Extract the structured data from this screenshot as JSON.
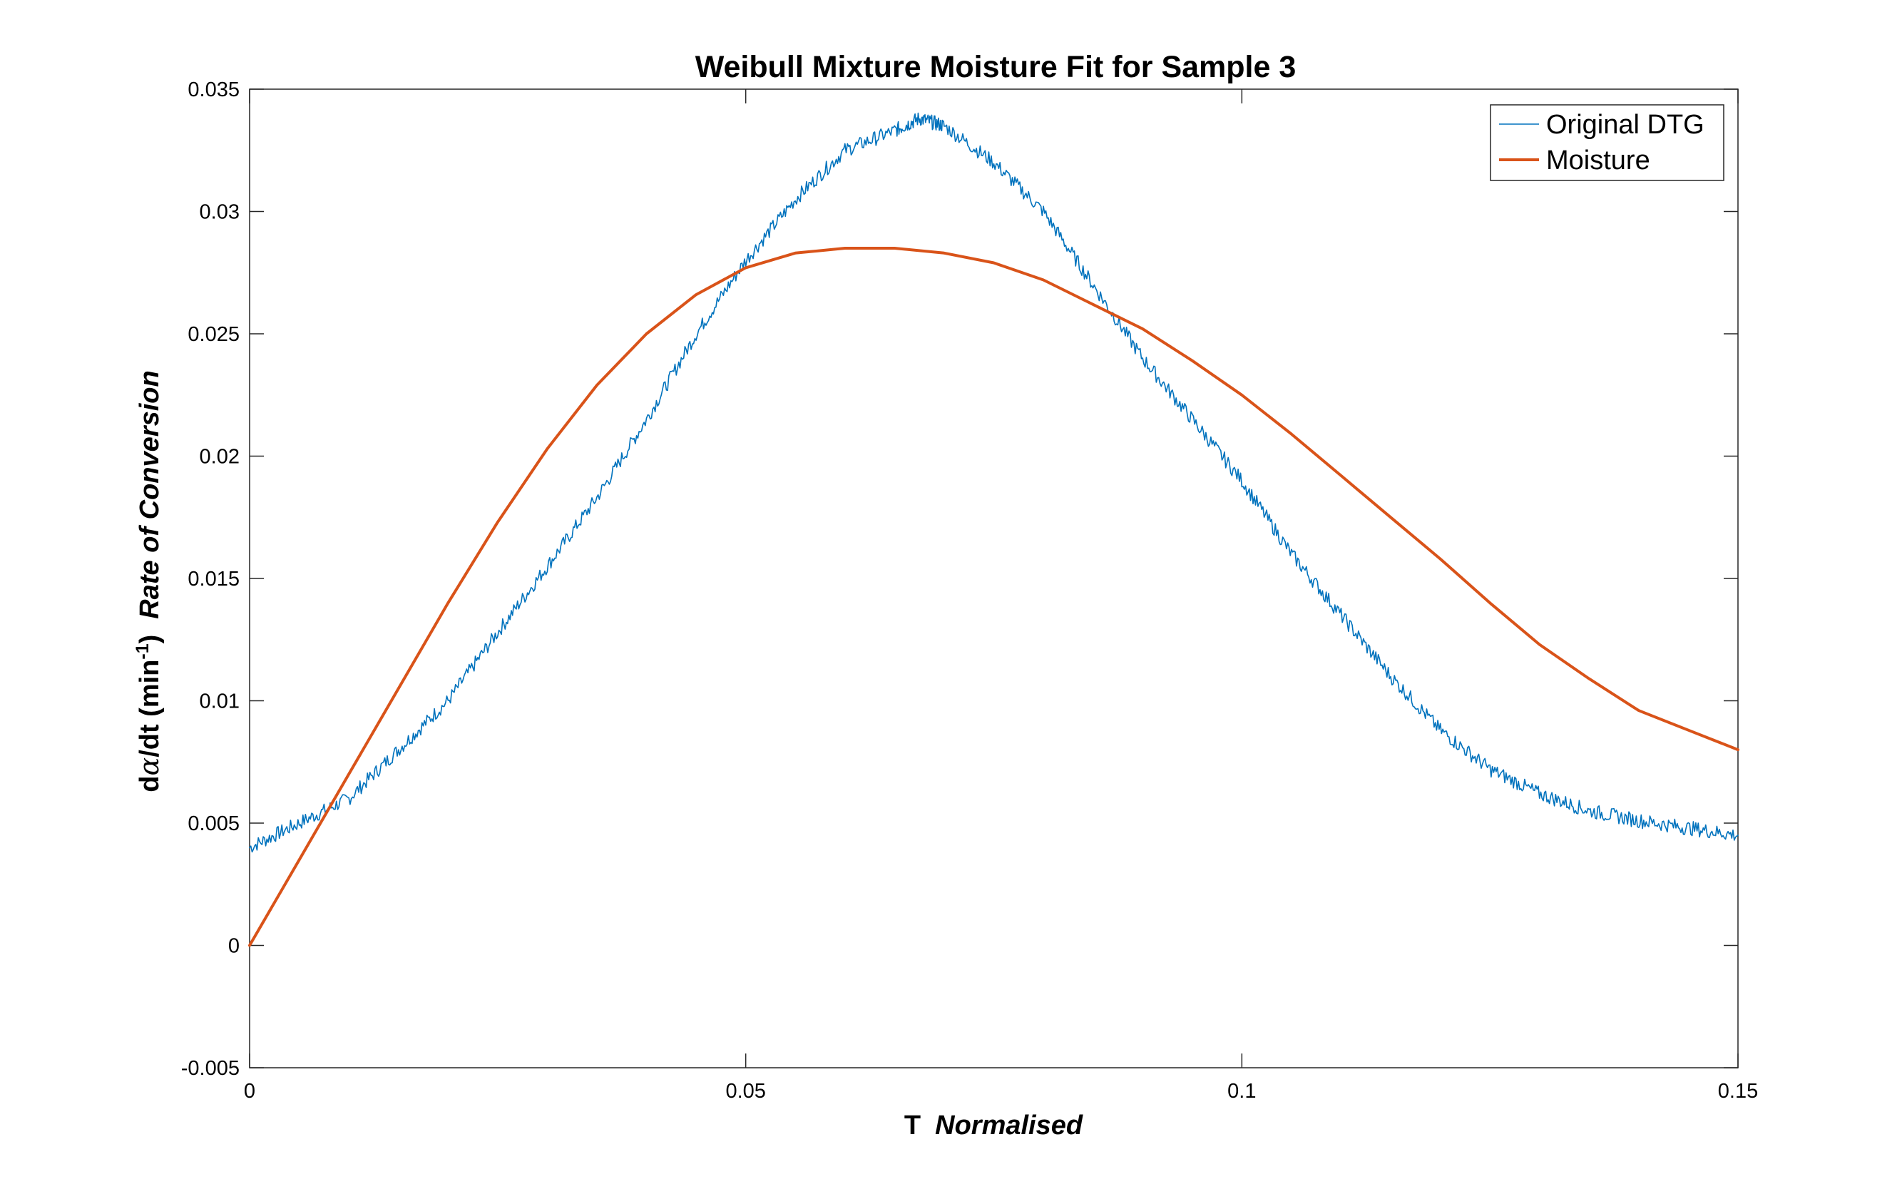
{
  "chart_data": {
    "type": "line",
    "title": "Weibull Mixture Moisture Fit for Sample 3",
    "xlabel": {
      "main": "T",
      "italic": "Normalised"
    },
    "ylabel": {
      "prefix": "d",
      "alpha": "α",
      "rest": "/dt (min",
      "sup": "-1",
      "close": ")",
      "italic": "Rate of Conversion"
    },
    "xlim": [
      0,
      0.15
    ],
    "ylim": [
      -0.005,
      0.035
    ],
    "xticks": [
      0,
      0.05,
      0.1,
      0.15
    ],
    "xtick_labels": [
      "0",
      "0.05",
      "0.1",
      "0.15"
    ],
    "yticks": [
      -0.005,
      0,
      0.005,
      0.01,
      0.015,
      0.02,
      0.025,
      0.03,
      0.035
    ],
    "ytick_labels": [
      "-0.005",
      "0",
      "0.005",
      "0.01",
      "0.015",
      "0.02",
      "0.025",
      "0.03",
      "0.035"
    ],
    "grid": false,
    "legend_position": "top-right",
    "series": [
      {
        "name": "Original DTG",
        "color": "#0072BD",
        "style": "thin",
        "x": [
          0,
          0.005,
          0.01,
          0.015,
          0.02,
          0.025,
          0.03,
          0.035,
          0.04,
          0.045,
          0.05,
          0.055,
          0.06,
          0.065,
          0.0675,
          0.07,
          0.075,
          0.08,
          0.085,
          0.09,
          0.095,
          0.1,
          0.105,
          0.11,
          0.115,
          0.12,
          0.125,
          0.13,
          0.135,
          0.14,
          0.145,
          0.15
        ],
        "y": [
          0.004,
          0.005,
          0.006,
          0.008,
          0.01,
          0.0128,
          0.0155,
          0.0183,
          0.0215,
          0.025,
          0.028,
          0.0305,
          0.0325,
          0.0333,
          0.0338,
          0.0335,
          0.032,
          0.03,
          0.027,
          0.024,
          0.0215,
          0.019,
          0.016,
          0.0135,
          0.011,
          0.0088,
          0.0072,
          0.0062,
          0.0055,
          0.0051,
          0.0048,
          0.0045
        ]
      },
      {
        "name": "Moisture",
        "color": "#D95319",
        "style": "thick",
        "x": [
          0,
          0.005,
          0.01,
          0.015,
          0.02,
          0.025,
          0.03,
          0.035,
          0.04,
          0.045,
          0.05,
          0.055,
          0.06,
          0.065,
          0.07,
          0.075,
          0.08,
          0.085,
          0.09,
          0.095,
          0.1,
          0.105,
          0.11,
          0.115,
          0.12,
          0.125,
          0.13,
          0.135,
          0.14,
          0.145,
          0.15
        ],
        "y": [
          0.0,
          0.0035,
          0.007,
          0.0105,
          0.014,
          0.0173,
          0.0203,
          0.0229,
          0.025,
          0.0266,
          0.0277,
          0.0283,
          0.0285,
          0.0285,
          0.0283,
          0.0279,
          0.0272,
          0.0262,
          0.0252,
          0.0239,
          0.0225,
          0.0209,
          0.0192,
          0.0175,
          0.0158,
          0.014,
          0.0123,
          0.0109,
          0.0096,
          0.0088,
          0.008
        ]
      }
    ]
  }
}
